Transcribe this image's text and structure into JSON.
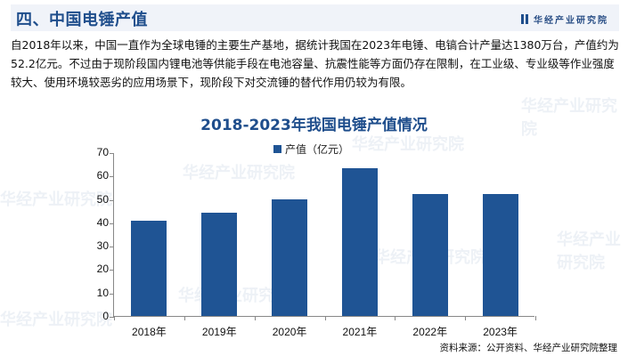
{
  "header": {
    "title": "四、中国电锤产值",
    "logo_text": "华经产业研究院"
  },
  "paragraph": "自2018年以来，中国一直作为全球电锤的主要生产基地，据统计我国在2023年电锤、电镐合计产量达1380万台，产值约为52.2亿元。不过由于现阶段国内锂电池等供能手段在电池容量、抗震性能等方面仍存在限制，在工业级、专业级等作业强度较大、使用环境较恶劣的应用场景下，现阶段下对交流锤的替代作用仍较为有限。",
  "watermark": "华经产业研究院",
  "chart_data": {
    "type": "bar",
    "title": "2018-2023年我国电锤产值情况",
    "categories": [
      "2018年",
      "2019年",
      "2020年",
      "2021年",
      "2022年",
      "2023年"
    ],
    "series": [
      {
        "name": "产值（亿元）",
        "values": [
          40.8,
          44.2,
          49.9,
          63.2,
          52.1,
          52.2
        ],
        "color": "#1f5494"
      }
    ],
    "xlabel": "",
    "ylabel": "",
    "ylim": [
      0,
      70
    ],
    "yticks": [
      "0",
      "10",
      "20",
      "30",
      "40",
      "50",
      "60",
      "70"
    ],
    "legend_position": "top",
    "grid": false
  },
  "source": "资料来源：公开资料、华经产业研究院整理"
}
